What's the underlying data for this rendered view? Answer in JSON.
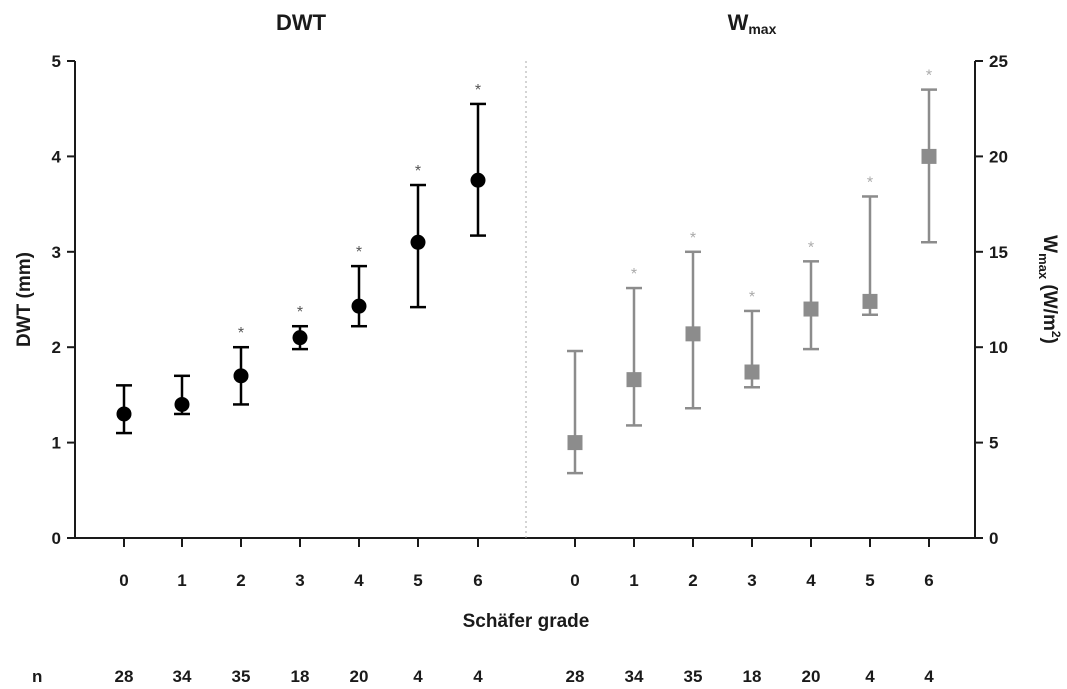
{
  "chart_data": {
    "type": "scatter",
    "panels": [
      {
        "title": "DWT",
        "ylabel": "DWT (mm)",
        "ylim": [
          0,
          5
        ],
        "yticks": [
          0,
          1,
          2,
          3,
          4,
          5
        ],
        "axis_side": "left",
        "marker": "circle",
        "color": "#000000",
        "categories": [
          "0",
          "1",
          "2",
          "3",
          "4",
          "5",
          "6"
        ],
        "values": [
          1.3,
          1.4,
          1.7,
          2.1,
          2.43,
          3.1,
          3.75
        ],
        "err_low": [
          1.1,
          1.3,
          1.4,
          1.98,
          2.22,
          2.42,
          3.17
        ],
        "err_high": [
          1.6,
          1.7,
          2.0,
          2.22,
          2.85,
          3.7,
          4.55
        ],
        "significant": [
          false,
          false,
          true,
          true,
          true,
          true,
          true
        ],
        "n": [
          "28",
          "34",
          "35",
          "18",
          "20",
          "4",
          "4"
        ]
      },
      {
        "title": "W",
        "title_sub": "max",
        "ylabel": "W",
        "ylabel_sub": "max",
        "ylabel_unit": " (W/m",
        "ylabel_sup": "2",
        "ylabel_end": ")",
        "ylim": [
          0,
          25
        ],
        "yticks": [
          0,
          5,
          10,
          15,
          20,
          25
        ],
        "axis_side": "right",
        "marker": "square",
        "color": "#8c8c8c",
        "categories": [
          "0",
          "1",
          "2",
          "3",
          "4",
          "5",
          "6"
        ],
        "values": [
          5.0,
          8.3,
          10.7,
          8.7,
          12.0,
          12.4,
          20.0
        ],
        "err_low": [
          3.4,
          5.9,
          6.8,
          7.9,
          9.9,
          11.7,
          15.5
        ],
        "err_high": [
          9.8,
          13.1,
          15.0,
          11.9,
          14.5,
          17.9,
          23.5
        ],
        "significant": [
          false,
          true,
          true,
          true,
          true,
          true,
          true
        ],
        "n": [
          "28",
          "34",
          "35",
          "18",
          "20",
          "4",
          "4"
        ]
      }
    ],
    "xlabel": "Schäfer grade",
    "n_label": "n",
    "star_symbol": "*",
    "separator": "dotted-vertical",
    "grid": false
  }
}
